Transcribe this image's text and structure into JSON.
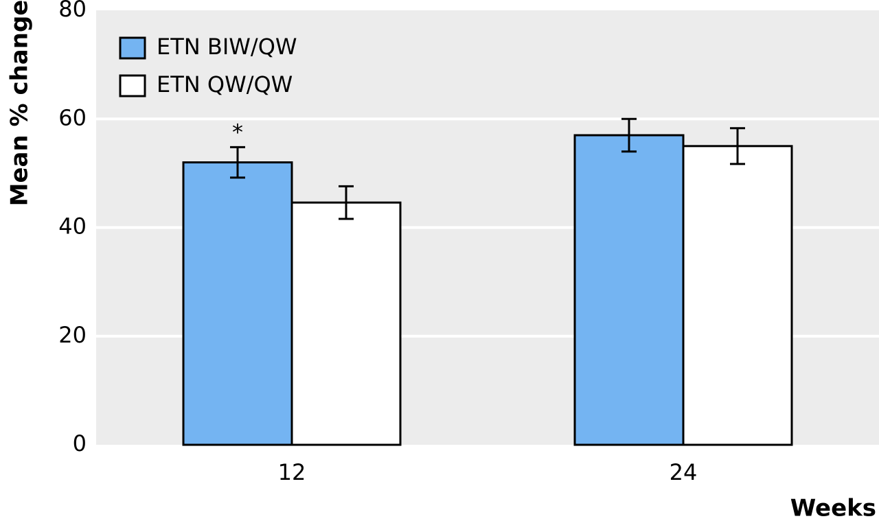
{
  "chart_data": {
    "type": "bar",
    "ylabel": "Mean % change",
    "xlabel": "Weeks",
    "categories": [
      "12",
      "24"
    ],
    "series": [
      {
        "name": "ETN BIW/QW",
        "color": "#74b4f2",
        "values": [
          52,
          57
        ],
        "errors": [
          2.8,
          3
        ]
      },
      {
        "name": "ETN QW/QW",
        "color": "#ffffff",
        "values": [
          44.6,
          55
        ],
        "errors": [
          3,
          3.3
        ]
      }
    ],
    "annotation": "*",
    "ylim": [
      0,
      80
    ],
    "yticks": [
      0,
      20,
      40,
      60,
      80
    ],
    "grid": true
  }
}
